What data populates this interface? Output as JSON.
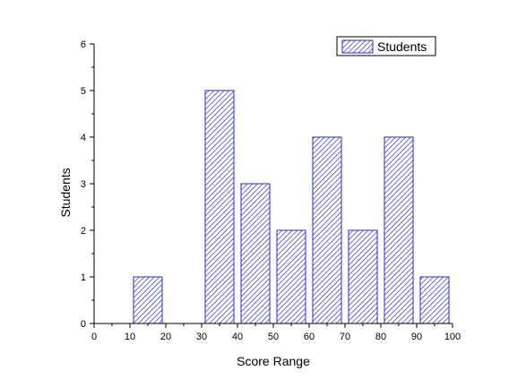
{
  "chart_data": {
    "type": "bar",
    "x": [
      15,
      35,
      45,
      55,
      65,
      75,
      85,
      95
    ],
    "values": [
      1,
      5,
      3,
      2,
      4,
      2,
      4,
      1
    ],
    "bar_width": 8,
    "xlabel": "Score Range",
    "ylabel": "Students",
    "xlim": [
      0,
      100
    ],
    "ylim": [
      0,
      6
    ],
    "xticks": [
      0,
      10,
      20,
      30,
      40,
      50,
      60,
      70,
      80,
      90,
      100
    ],
    "yticks": [
      0,
      1,
      2,
      3,
      4,
      5,
      6
    ],
    "grid": false,
    "legend_position": "top-right",
    "series": [
      {
        "name": "Students",
        "values": [
          1,
          5,
          3,
          2,
          4,
          2,
          4,
          1
        ]
      }
    ],
    "colors": {
      "hatch": "#2b2bcc",
      "bar_fill": "#ffffff",
      "axis": "#000000"
    },
    "fill_pattern": "diagonal-hatch"
  }
}
